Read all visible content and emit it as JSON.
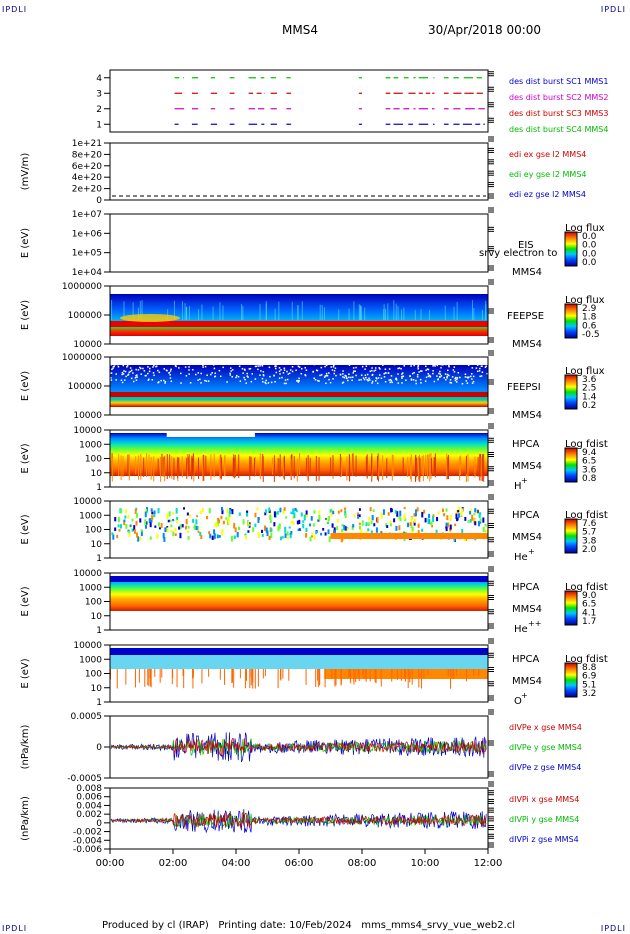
{
  "corners": {
    "tl": "IPDLI",
    "tr": "IPDLI",
    "bl": "IPDLI",
    "br": "IPDLI"
  },
  "header": {
    "spacecraft": "MMS4",
    "date": "30/Apr/2018 00:00"
  },
  "footer": {
    "produced": "Produced by cl (IRAP)",
    "printing": "Printing date: 10/Feb/2024",
    "file": "mms_mms4_srvy_vue_web2.cl"
  },
  "time_axis": {
    "ticks": [
      "00:00",
      "02:00",
      "04:00",
      "06:00",
      "08:00",
      "10:00",
      "12:00"
    ],
    "range_hours": [
      0,
      12
    ]
  },
  "chart_data": [
    {
      "type": "line",
      "panel": "burst",
      "yticks": [
        "1",
        "2",
        "3",
        "4"
      ],
      "series": [
        {
          "name": "des dist burst SC1 MMS1",
          "level": 1,
          "color": "#0000cc"
        },
        {
          "name": "des dist burst SC2 MMS2",
          "level": 2,
          "color": "#cc00cc"
        },
        {
          "name": "des dist burst SC3 MMS3",
          "level": 3,
          "color": "#cc0000"
        },
        {
          "name": "des dist burst SC4 MMS4",
          "level": 4,
          "color": "#00bb00"
        }
      ],
      "burst_intervals_hours": [
        [
          2.05,
          2.35
        ],
        [
          2.6,
          2.8
        ],
        [
          3.2,
          3.4
        ],
        [
          3.8,
          3.95
        ],
        [
          4.4,
          4.9
        ],
        [
          5.1,
          5.3
        ],
        [
          5.6,
          5.75
        ],
        [
          7.9,
          8.0
        ],
        [
          8.75,
          8.9
        ],
        [
          9.0,
          9.7
        ],
        [
          9.8,
          10.3
        ],
        [
          10.6,
          10.75
        ],
        [
          10.9,
          11.9
        ]
      ]
    },
    {
      "type": "line",
      "panel": "edi",
      "ylabel": "(mV/m)",
      "yticks": [
        "0",
        "2e+20",
        "4e+20",
        "6e+20",
        "8e+20",
        "1e+21"
      ],
      "series": [
        {
          "name": "edi ex gse l2 MMS4",
          "color": "#cc0000"
        },
        {
          "name": "edi ey gse l2 MMS4",
          "color": "#00bb00"
        },
        {
          "name": "edi ez gse l2 MMS4",
          "color": "#0000cc"
        }
      ]
    },
    {
      "type": "heatmap",
      "panel": "eis",
      "ylabel": "E (eV)",
      "yticks": [
        "1e+04",
        "1e+05",
        "1e+06",
        "1e+07"
      ],
      "instrument": "EIS",
      "overlay": "srvy electron to",
      "sc": "MMS4",
      "colorbar": {
        "title": "Log flux",
        "ticks": [
          "0.0",
          "0.0",
          "0.0",
          "0.0"
        ]
      }
    },
    {
      "type": "heatmap",
      "panel": "feepse",
      "ylabel": "E (eV)",
      "yticks": [
        "10000",
        "100000",
        "1000000"
      ],
      "instrument": "FEEPSE",
      "sc": "MMS4",
      "colorbar": {
        "title": "Log flux",
        "ticks": [
          "2.9",
          "1.8",
          "0.6",
          "-0.5"
        ]
      }
    },
    {
      "type": "heatmap",
      "panel": "feepsi",
      "ylabel": "E (eV)",
      "yticks": [
        "10000",
        "100000",
        "1000000"
      ],
      "instrument": "FEEPSI",
      "sc": "MMS4",
      "colorbar": {
        "title": "Log flux",
        "ticks": [
          "3.6",
          "2.5",
          "1.4",
          "0.2"
        ]
      }
    },
    {
      "type": "heatmap",
      "panel": "hpca_h",
      "ylabel": "E (eV)",
      "yticks": [
        "1",
        "10",
        "100",
        "1000",
        "10000"
      ],
      "instrument": "HPCA",
      "sc": "MMS4",
      "species": "H",
      "charge": "+",
      "colorbar": {
        "title": "Log fdist",
        "ticks": [
          "9.4",
          "6.5",
          "3.6",
          "0.8"
        ]
      }
    },
    {
      "type": "heatmap",
      "panel": "hpca_he1",
      "ylabel": "E (eV)",
      "yticks": [
        "1",
        "10",
        "100",
        "1000",
        "10000"
      ],
      "instrument": "HPCA",
      "sc": "MMS4",
      "species": "He",
      "charge": "+",
      "colorbar": {
        "title": "Log fdist",
        "ticks": [
          "7.6",
          "5.7",
          "3.8",
          "2.0"
        ]
      }
    },
    {
      "type": "heatmap",
      "panel": "hpca_he2",
      "ylabel": "E (eV)",
      "yticks": [
        "1",
        "10",
        "100",
        "1000",
        "10000"
      ],
      "instrument": "HPCA",
      "sc": "MMS4",
      "species": "He",
      "charge": "++",
      "colorbar": {
        "title": "Log fdist",
        "ticks": [
          "9.0",
          "6.5",
          "4.1",
          "1.7"
        ]
      }
    },
    {
      "type": "heatmap",
      "panel": "hpca_o",
      "ylabel": "E (eV)",
      "yticks": [
        "1",
        "10",
        "100",
        "1000",
        "10000"
      ],
      "instrument": "HPCA",
      "sc": "MMS4",
      "species": "O",
      "charge": "+",
      "colorbar": {
        "title": "Log fdist",
        "ticks": [
          "8.8",
          "6.9",
          "5.1",
          "3.2"
        ]
      }
    },
    {
      "type": "line",
      "panel": "divpe",
      "ylabel": "(nPa/km)",
      "yticks": [
        "-0.0005",
        "0",
        "0.0005"
      ],
      "series": [
        {
          "name": "dIVPe x gse MMS4",
          "color": "#cc0000"
        },
        {
          "name": "dIVPe y gse MMS4",
          "color": "#00bb00"
        },
        {
          "name": "dIVPe z gse MMS4",
          "color": "#0000cc"
        }
      ]
    },
    {
      "type": "line",
      "panel": "divpi",
      "ylabel": "(nPa/km)",
      "yticks": [
        "-0.006",
        "-0.004",
        "-0.002",
        "0",
        "0.002",
        "0.004",
        "0.006",
        "0.008"
      ],
      "series": [
        {
          "name": "dIVPi x gse MMS4",
          "color": "#cc0000"
        },
        {
          "name": "dIVPi y gse MMS4",
          "color": "#00bb00"
        },
        {
          "name": "dIVPi z gse MMS4",
          "color": "#0000cc"
        }
      ]
    }
  ]
}
